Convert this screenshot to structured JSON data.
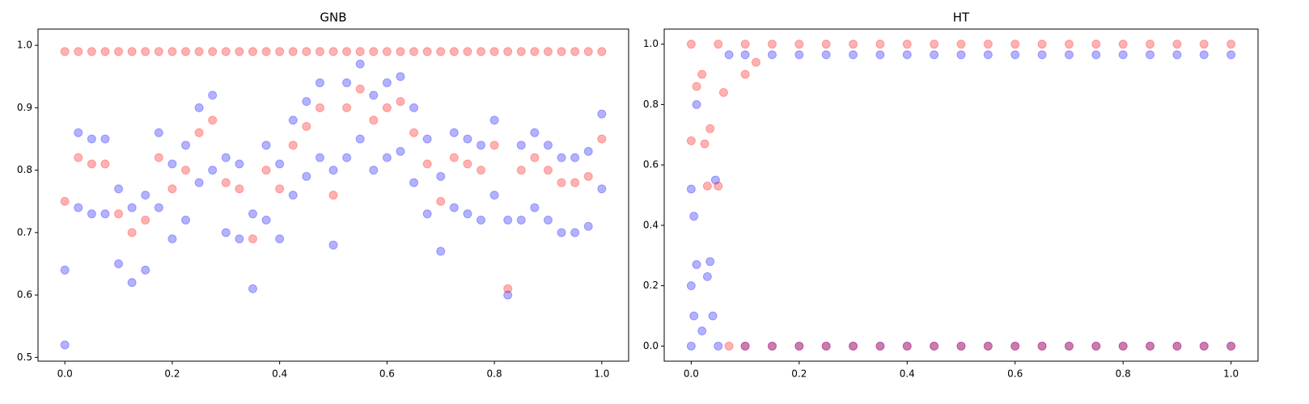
{
  "chart_data": [
    {
      "type": "scatter",
      "title": "GNB",
      "xlim": [
        -0.05,
        1.05
      ],
      "ylim": [
        0.494,
        1.026
      ],
      "xticks": [
        {
          "value": 0,
          "label": "0.0"
        },
        0.2,
        0.4,
        0.6,
        0.8,
        {
          "value": 1,
          "label": "1.0"
        }
      ],
      "yticks": [
        0.5,
        0.6,
        0.7,
        0.8,
        0.9,
        {
          "value": 1,
          "label": "1.0"
        }
      ],
      "alpha": 0.3,
      "series": [
        {
          "color": "#0000ff",
          "x": [
            0,
            0.025,
            0.05,
            0.075,
            0.1,
            0.125,
            0.15,
            0.175,
            0.2,
            0.225,
            0.25,
            0.275,
            0.3,
            0.325,
            0.35,
            0.375,
            0.4,
            0.425,
            0.45,
            0.475,
            0.5,
            0.525,
            0.55,
            0.575,
            0.6,
            0.625,
            0.65,
            0.675,
            0.7,
            0.725,
            0.75,
            0.775,
            0.8,
            0.825,
            0.85,
            0.875,
            0.9,
            0.925,
            0.95,
            0.975,
            1,
            0,
            0.025,
            0.05,
            0.075,
            0.1,
            0.125,
            0.15,
            0.175,
            0.2,
            0.225,
            0.25,
            0.275,
            0.3,
            0.325,
            0.35,
            0.375,
            0.4,
            0.425,
            0.45,
            0.475,
            0.5,
            0.525,
            0.55,
            0.575,
            0.6,
            0.625,
            0.65,
            0.675,
            0.7,
            0.725,
            0.75,
            0.775,
            0.8,
            0.825,
            0.85,
            0.875,
            0.9,
            0.925,
            0.95,
            0.975,
            1
          ],
          "values": [
            0.52,
            0.74,
            0.73,
            0.73,
            0.65,
            0.62,
            0.64,
            0.74,
            0.69,
            0.72,
            0.78,
            0.8,
            0.7,
            0.69,
            0.61,
            0.72,
            0.69,
            0.76,
            0.79,
            0.82,
            0.68,
            0.82,
            0.85,
            0.8,
            0.82,
            0.83,
            0.78,
            0.73,
            0.67,
            0.74,
            0.73,
            0.72,
            0.76,
            0.6,
            0.72,
            0.74,
            0.72,
            0.7,
            0.7,
            0.71,
            0.77,
            0.64,
            0.86,
            0.85,
            0.85,
            0.77,
            0.74,
            0.76,
            0.86,
            0.81,
            0.84,
            0.9,
            0.92,
            0.82,
            0.81,
            0.73,
            0.84,
            0.81,
            0.88,
            0.91,
            0.94,
            0.8,
            0.94,
            0.97,
            0.92,
            0.94,
            0.95,
            0.9,
            0.85,
            0.79,
            0.86,
            0.85,
            0.84,
            0.88,
            0.72,
            0.84,
            0.86,
            0.84,
            0.82,
            0.82,
            0.83,
            0.89
          ]
        },
        {
          "color": "#ff0000",
          "x": [
            0,
            0.025,
            0.05,
            0.075,
            0.1,
            0.125,
            0.15,
            0.175,
            0.2,
            0.225,
            0.25,
            0.275,
            0.3,
            0.325,
            0.35,
            0.375,
            0.4,
            0.425,
            0.45,
            0.475,
            0.5,
            0.525,
            0.55,
            0.575,
            0.6,
            0.625,
            0.65,
            0.675,
            0.7,
            0.725,
            0.75,
            0.775,
            0.8,
            0.825,
            0.85,
            0.875,
            0.9,
            0.925,
            0.95,
            0.975,
            1,
            0,
            0.025,
            0.05,
            0.075,
            0.1,
            0.125,
            0.15,
            0.175,
            0.2,
            0.225,
            0.25,
            0.275,
            0.3,
            0.325,
            0.35,
            0.375,
            0.4,
            0.425,
            0.45,
            0.475,
            0.5,
            0.525,
            0.55,
            0.575,
            0.6,
            0.625,
            0.65,
            0.675,
            0.7,
            0.725,
            0.75,
            0.775,
            0.8,
            0.825,
            0.85,
            0.875,
            0.9,
            0.925,
            0.95,
            0.975,
            1
          ],
          "values": [
            0.75,
            0.82,
            0.81,
            0.81,
            0.73,
            0.7,
            0.72,
            0.82,
            0.77,
            0.8,
            0.86,
            0.88,
            0.78,
            0.77,
            0.69,
            0.8,
            0.77,
            0.84,
            0.87,
            0.9,
            0.76,
            0.9,
            0.93,
            0.88,
            0.9,
            0.91,
            0.86,
            0.81,
            0.75,
            0.82,
            0.81,
            0.8,
            0.84,
            0.61,
            0.8,
            0.82,
            0.8,
            0.78,
            0.78,
            0.79,
            0.85,
            0.99,
            0.99,
            0.99,
            0.99,
            0.99,
            0.99,
            0.99,
            0.99,
            0.99,
            0.99,
            0.99,
            0.99,
            0.99,
            0.99,
            0.99,
            0.99,
            0.99,
            0.99,
            0.99,
            0.99,
            0.99,
            0.99,
            0.99,
            0.99,
            0.99,
            0.99,
            0.99,
            0.99,
            0.99,
            0.99,
            0.99,
            0.99,
            0.99,
            0.99,
            0.99,
            0.99,
            0.99,
            0.99,
            0.99,
            0.99,
            0.99
          ]
        }
      ]
    },
    {
      "type": "scatter",
      "title": "HT",
      "xlim": [
        -0.05,
        1.05
      ],
      "ylim": [
        -0.05,
        1.05
      ],
      "xticks": [
        {
          "value": 0,
          "label": "0.0"
        },
        0.2,
        0.4,
        0.6,
        0.8,
        {
          "value": 1,
          "label": "1.0"
        }
      ],
      "yticks": [
        {
          "value": 0,
          "label": "0.0"
        },
        0.2,
        0.4,
        0.6,
        0.8,
        {
          "value": 1,
          "label": "1.0"
        }
      ],
      "alpha": 0.3,
      "series": [
        {
          "color": "#0000ff",
          "x": [
            0,
            0.05,
            0.1,
            0.15,
            0.2,
            0.25,
            0.3,
            0.35,
            0.4,
            0.45,
            0.5,
            0.55,
            0.6,
            0.65,
            0.7,
            0.75,
            0.8,
            0.85,
            0.9,
            0.95,
            1,
            0.07,
            0.1,
            0.15,
            0.2,
            0.25,
            0.3,
            0.35,
            0.4,
            0.45,
            0.5,
            0.55,
            0.6,
            0.65,
            0.7,
            0.75,
            0.8,
            0.85,
            0.9,
            0.95,
            1,
            0,
            0,
            0.005,
            0.01,
            0.02,
            0.03,
            0.035,
            0.04,
            0.045,
            0.01,
            0.005
          ],
          "values": [
            0,
            0,
            0,
            0,
            0,
            0,
            0,
            0,
            0,
            0,
            0,
            0,
            0,
            0,
            0,
            0,
            0,
            0,
            0,
            0,
            0,
            0.965,
            0.965,
            0.965,
            0.965,
            0.965,
            0.965,
            0.965,
            0.965,
            0.965,
            0.965,
            0.965,
            0.965,
            0.965,
            0.965,
            0.965,
            0.965,
            0.965,
            0.965,
            0.965,
            0.965,
            0.52,
            0.2,
            0.1,
            0.27,
            0.05,
            0.23,
            0.28,
            0.1,
            0.55,
            0.8,
            0.43
          ]
        },
        {
          "color": "#ff0000",
          "x": [
            0,
            0.05,
            0.1,
            0.15,
            0.2,
            0.25,
            0.3,
            0.35,
            0.4,
            0.45,
            0.5,
            0.55,
            0.6,
            0.65,
            0.7,
            0.75,
            0.8,
            0.85,
            0.9,
            0.95,
            1,
            0.07,
            0.1,
            0.15,
            0.2,
            0.25,
            0.3,
            0.35,
            0.4,
            0.45,
            0.5,
            0.55,
            0.6,
            0.65,
            0.7,
            0.75,
            0.8,
            0.85,
            0.9,
            0.95,
            1,
            0,
            0.01,
            0.02,
            0.025,
            0.03,
            0.035,
            0.05,
            0.06,
            0.1,
            0.12
          ],
          "values": [
            1,
            1,
            1,
            1,
            1,
            1,
            1,
            1,
            1,
            1,
            1,
            1,
            1,
            1,
            1,
            1,
            1,
            1,
            1,
            1,
            1,
            0,
            0,
            0,
            0,
            0,
            0,
            0,
            0,
            0,
            0,
            0,
            0,
            0,
            0,
            0,
            0,
            0,
            0,
            0,
            0,
            0.68,
            0.86,
            0.9,
            0.67,
            0.53,
            0.72,
            0.53,
            0.84,
            0.9,
            0.94
          ]
        }
      ]
    }
  ]
}
